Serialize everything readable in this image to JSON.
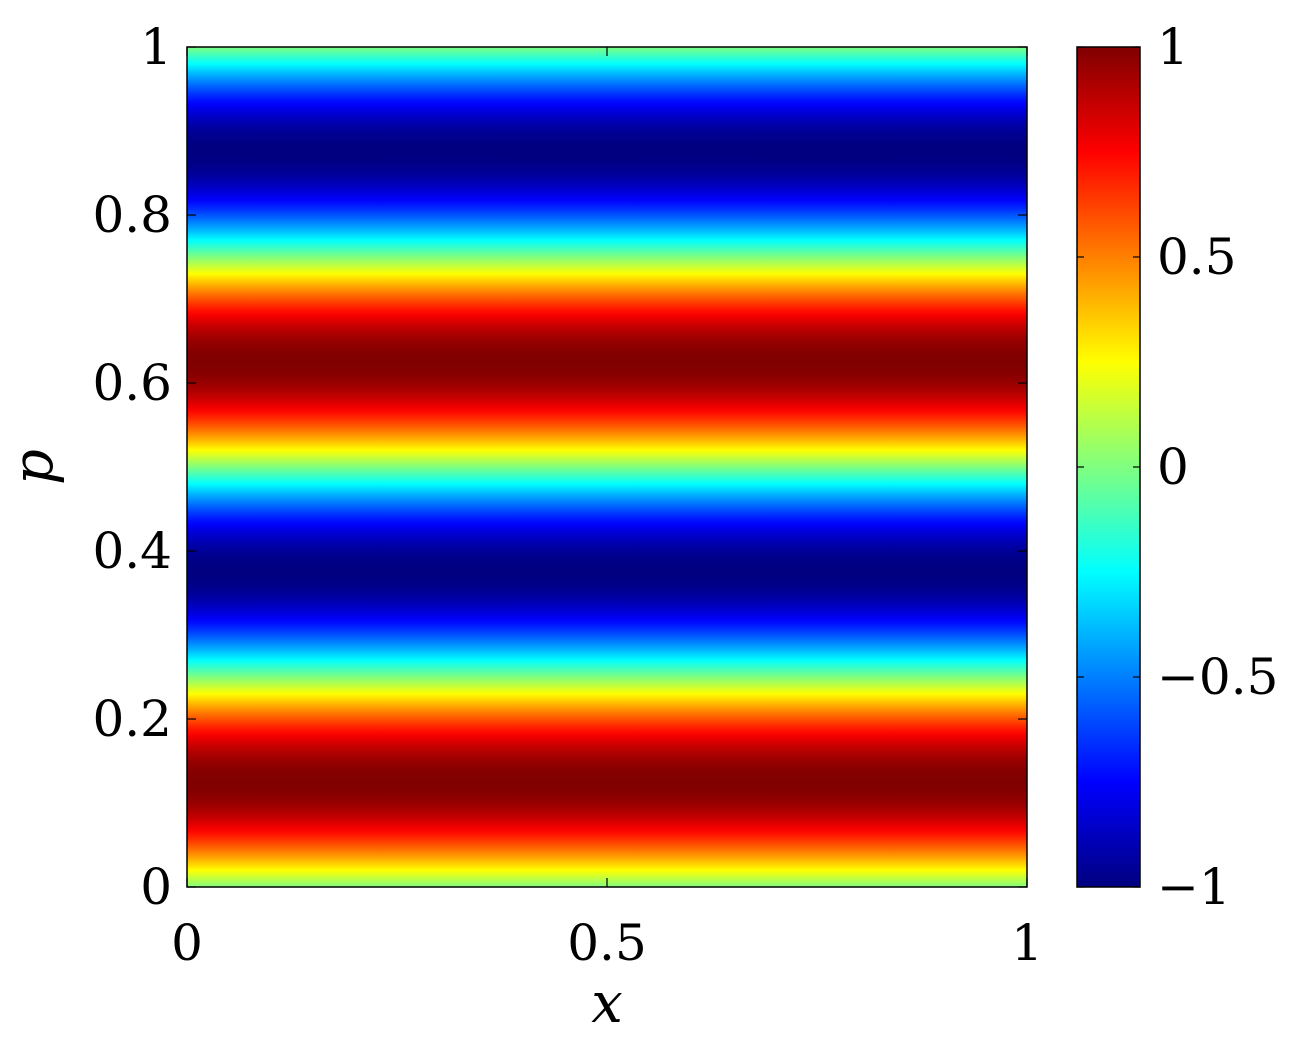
{
  "chart_data": {
    "type": "heatmap",
    "title": "",
    "xlabel": "x",
    "ylabel": "p",
    "xlim": [
      0,
      1
    ],
    "ylim": [
      0,
      1
    ],
    "x_ticks": [
      {
        "value": 0,
        "label": "0"
      },
      {
        "value": 0.5,
        "label": "0.5"
      },
      {
        "value": 1,
        "label": "1"
      }
    ],
    "y_ticks": [
      {
        "value": 0,
        "label": "0"
      },
      {
        "value": 0.2,
        "label": "0.2"
      },
      {
        "value": 0.4,
        "label": "0.4"
      },
      {
        "value": 0.6,
        "label": "0.6"
      },
      {
        "value": 0.8,
        "label": "0.8"
      },
      {
        "value": 1,
        "label": "1"
      }
    ],
    "field": {
      "description": "value varies only with p: sin(4*pi*p); constant along x",
      "function": "sin(4*pi*p)"
    },
    "grid": false,
    "colormap": "jet",
    "colorbar": {
      "range": [
        -1,
        1
      ],
      "placement": "right",
      "ticks": [
        {
          "value": -1,
          "label": "−1"
        },
        {
          "value": -0.5,
          "label": "−0.5"
        },
        {
          "value": 0,
          "label": "0"
        },
        {
          "value": 0.5,
          "label": "0.5"
        },
        {
          "value": 1,
          "label": "1"
        }
      ]
    }
  }
}
